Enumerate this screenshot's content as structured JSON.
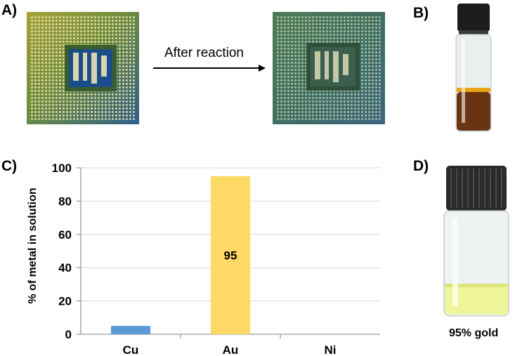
{
  "panels": {
    "a": "A)",
    "b": "B)",
    "c": "C)",
    "d": "D)"
  },
  "arrow_text": "After reaction",
  "vial_d_caption": "95% gold",
  "colors": {
    "cu_bar": "#5b9bd5",
    "au_bar": "#ffd966",
    "gridline": "#d9d9d9",
    "axis": "#7f7f7f"
  },
  "chart_data": {
    "type": "bar",
    "categories": [
      "Cu",
      "Au",
      "Ni"
    ],
    "values": [
      5,
      95,
      0
    ],
    "data_labels": [
      "",
      "95",
      ""
    ],
    "title": "",
    "xlabel": "",
    "ylabel": "% of metal in solution",
    "ylim": [
      0,
      100
    ],
    "yticks": [
      "0",
      "20",
      "40",
      "60",
      "80",
      "100"
    ],
    "grid": true
  }
}
